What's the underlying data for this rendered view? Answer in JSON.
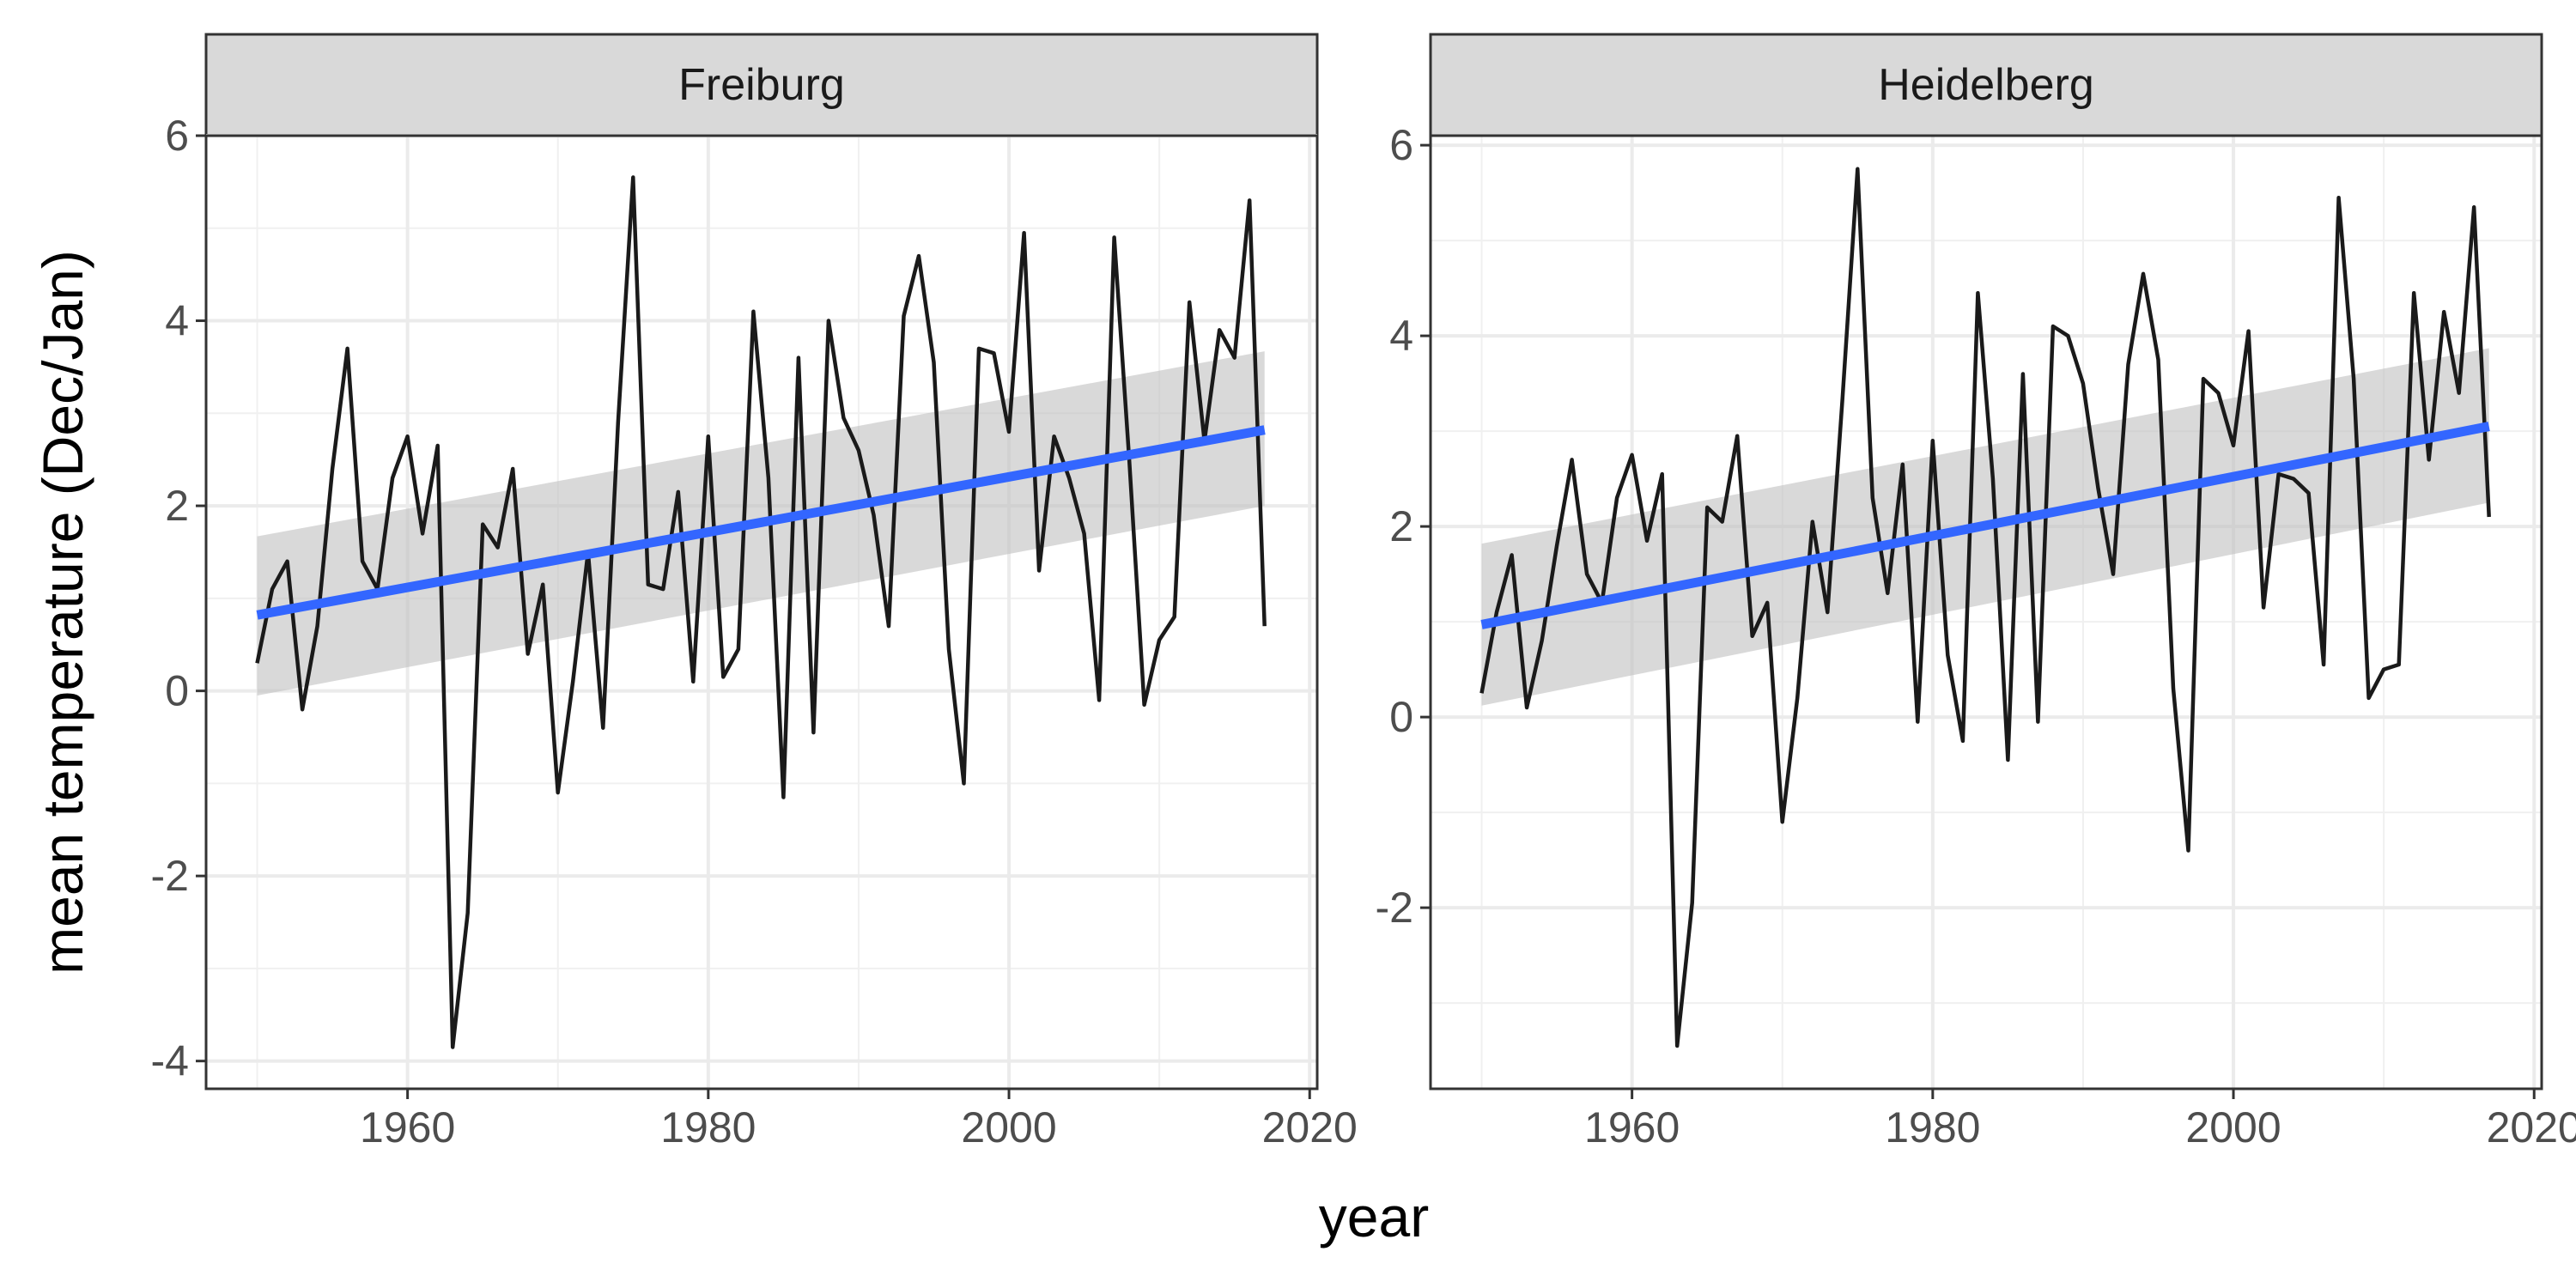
{
  "chart_data": {
    "type": "line",
    "xlabel": "year",
    "ylabel": "mean temperature (Dec/Jan)",
    "grid": true,
    "legend": "none",
    "colors": {
      "line": "#1a1a1a",
      "trend": "#3366ff",
      "ribbon": "#bfbfbf",
      "strip": "#d9d9d9"
    },
    "panels": [
      {
        "facet": "Freiburg",
        "xlim": [
          1946.6,
          2020.5
        ],
        "ylim": [
          -4.3,
          6.0
        ],
        "x_ticks": [
          1960,
          1980,
          2000,
          2020
        ],
        "x_tick_labels": [
          "1960",
          "1980",
          "2000",
          "2020"
        ],
        "y_ticks": [
          -4,
          -2,
          0,
          2,
          4,
          6
        ],
        "y_tick_labels": [
          "-4",
          "-2",
          "0",
          "2",
          "4",
          "6"
        ],
        "series": [
          {
            "x": [
              1950,
              1951,
              1952,
              1953,
              1954,
              1955,
              1956,
              1957,
              1958,
              1959,
              1960,
              1961,
              1962,
              1963,
              1964,
              1965,
              1966,
              1967,
              1968,
              1969,
              1970,
              1971,
              1972,
              1973,
              1974,
              1975,
              1976,
              1977,
              1978,
              1979,
              1980,
              1981,
              1982,
              1983,
              1984,
              1985,
              1986,
              1987,
              1988,
              1989,
              1990,
              1991,
              1992,
              1993,
              1994,
              1995,
              1996,
              1997,
              1998,
              1999,
              2000,
              2001,
              2002,
              2003,
              2004,
              2005,
              2006,
              2007,
              2008,
              2009,
              2010,
              2011,
              2012,
              2013,
              2014,
              2015,
              2016,
              2017
            ],
            "y": [
              0.3,
              1.1,
              1.4,
              -0.2,
              0.7,
              2.4,
              3.7,
              1.4,
              1.1,
              2.3,
              2.75,
              1.7,
              2.65,
              -3.85,
              -2.4,
              1.8,
              1.55,
              2.4,
              0.4,
              1.15,
              -1.1,
              0.1,
              1.5,
              -0.4,
              2.9,
              5.55,
              1.15,
              1.1,
              2.15,
              0.1,
              2.75,
              0.15,
              0.45,
              4.1,
              2.3,
              -1.15,
              3.6,
              -0.45,
              4.0,
              2.95,
              2.6,
              1.9,
              0.7,
              4.05,
              4.7,
              3.55,
              0.45,
              -1.0,
              3.7,
              3.65,
              2.8,
              4.95,
              1.3,
              2.75,
              2.3,
              1.7,
              -0.1,
              4.9,
              2.5,
              -0.15,
              0.55,
              0.8,
              4.2,
              2.7,
              3.9,
              3.6,
              5.3,
              0.7
            ]
          }
        ],
        "trend": {
          "x": [
            1950,
            2017
          ],
          "y": [
            0.82,
            2.82
          ],
          "lower": [
            -0.05,
            2.0
          ],
          "upper": [
            1.67,
            3.67
          ]
        }
      },
      {
        "facet": "Heidelberg",
        "xlim": [
          1946.6,
          2020.5
        ],
        "ylim": [
          -3.9,
          6.1
        ],
        "x_ticks": [
          1960,
          1980,
          2000,
          2020
        ],
        "x_tick_labels": [
          "1960",
          "1980",
          "2000",
          "2020"
        ],
        "y_ticks": [
          -2,
          0,
          2,
          4,
          6
        ],
        "y_tick_labels": [
          "-2",
          "0",
          "2",
          "4",
          "6"
        ],
        "series": [
          {
            "x": [
              1950,
              1951,
              1952,
              1953,
              1954,
              1955,
              1956,
              1957,
              1958,
              1959,
              1960,
              1961,
              1962,
              1963,
              1964,
              1965,
              1966,
              1967,
              1968,
              1969,
              1970,
              1971,
              1972,
              1973,
              1974,
              1975,
              1976,
              1977,
              1978,
              1979,
              1980,
              1981,
              1982,
              1983,
              1984,
              1985,
              1986,
              1987,
              1988,
              1989,
              1990,
              1991,
              1992,
              1993,
              1994,
              1995,
              1996,
              1997,
              1998,
              1999,
              2000,
              2001,
              2002,
              2003,
              2004,
              2005,
              2006,
              2007,
              2008,
              2009,
              2010,
              2011,
              2012,
              2013,
              2014,
              2015,
              2016,
              2017
            ],
            "y": [
              0.25,
              1.1,
              1.7,
              0.1,
              0.8,
              1.8,
              2.7,
              1.5,
              1.2,
              2.3,
              2.75,
              1.85,
              2.55,
              -3.45,
              -1.95,
              2.2,
              2.05,
              2.95,
              0.85,
              1.2,
              -1.1,
              0.2,
              2.05,
              1.1,
              3.35,
              5.75,
              2.3,
              1.3,
              2.65,
              -0.05,
              2.9,
              0.65,
              -0.25,
              4.45,
              2.5,
              -0.45,
              3.6,
              -0.05,
              4.1,
              4.0,
              3.5,
              2.4,
              1.5,
              3.7,
              4.65,
              3.75,
              0.3,
              -1.4,
              3.55,
              3.4,
              2.85,
              4.05,
              1.15,
              2.55,
              2.5,
              2.35,
              0.55,
              5.45,
              3.55,
              0.2,
              0.5,
              0.55,
              4.45,
              2.7,
              4.25,
              3.4,
              5.35,
              2.1
            ]
          }
        ],
        "trend": {
          "x": [
            1950,
            2017
          ],
          "y": [
            0.97,
            3.05
          ],
          "lower": [
            0.12,
            2.25
          ],
          "upper": [
            1.82,
            3.87
          ]
        }
      }
    ]
  }
}
